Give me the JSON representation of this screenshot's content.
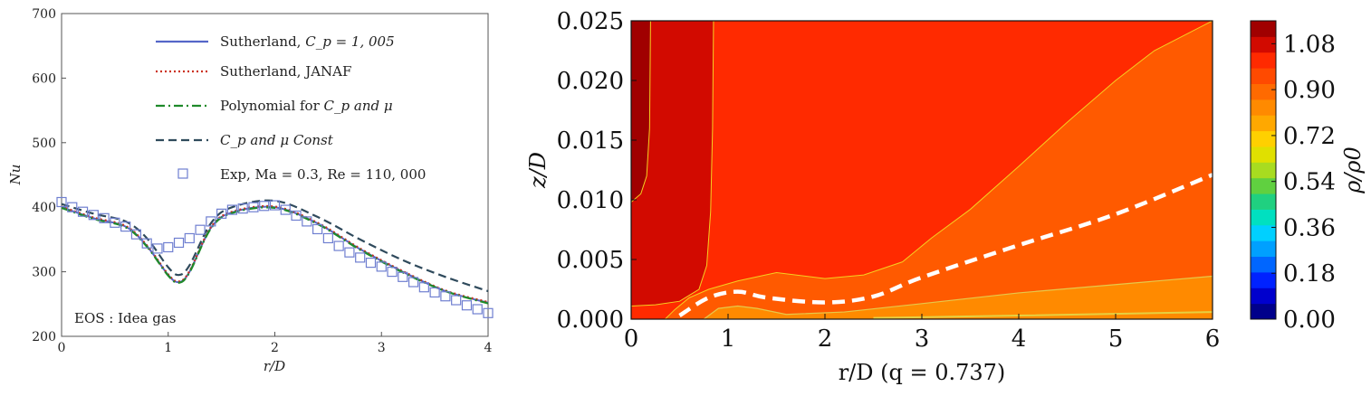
{
  "chart_data": [
    {
      "type": "line",
      "xlabel": "r/D",
      "ylabel": "Nu",
      "xlim": [
        0,
        4
      ],
      "ylim": [
        200,
        700
      ],
      "x_ticks": [
        "0",
        "1",
        "2",
        "3",
        "4"
      ],
      "y_ticks": [
        "200",
        "300",
        "400",
        "500",
        "600",
        "700"
      ],
      "annotation": "EOS : Idea gas",
      "legend_position": "top-right",
      "series": [
        {
          "name": "Sutherland, C_p = 1,005",
          "label_main": "Sutherland, ",
          "label_math": "C_p = 1, 005",
          "style": "solid",
          "color": "#5566c8",
          "x": [
            0,
            0.3,
            0.6,
            0.8,
            1.0,
            1.1,
            1.2,
            1.4,
            1.6,
            2.0,
            2.4,
            2.8,
            3.2,
            3.6,
            4.0
          ],
          "y": [
            400,
            383,
            370,
            340,
            295,
            284,
            300,
            368,
            392,
            400,
            375,
            335,
            300,
            270,
            252
          ]
        },
        {
          "name": "Sutherland, JANAF",
          "label_main": "Sutherland, JANAF",
          "label_math": "",
          "style": "dotted",
          "color": "#cc3322",
          "x": [
            0,
            0.3,
            0.6,
            0.8,
            1.0,
            1.1,
            1.2,
            1.4,
            1.6,
            2.0,
            2.4,
            2.8,
            3.2,
            3.6,
            4.0
          ],
          "y": [
            401,
            384,
            371,
            341,
            296,
            285,
            301,
            369,
            393,
            401,
            376,
            336,
            301,
            271,
            253
          ]
        },
        {
          "name": "Polynomial for C_p and μ",
          "label_main": "Polynomial for ",
          "label_math": "C_p and μ",
          "style": "dashdot",
          "color": "#1f8a2a",
          "x": [
            0,
            0.3,
            0.6,
            0.8,
            1.0,
            1.1,
            1.2,
            1.4,
            1.6,
            2.0,
            2.4,
            2.8,
            3.2,
            3.6,
            4.0
          ],
          "y": [
            399,
            382,
            369,
            339,
            294,
            283,
            299,
            367,
            391,
            399,
            374,
            334,
            299,
            270,
            251
          ]
        },
        {
          "name": "C_p and μ Const",
          "label_main": "",
          "label_math": "C_p and μ Const",
          "style": "dashed",
          "color": "#2f4a5c",
          "x": [
            0,
            0.3,
            0.6,
            0.8,
            1.0,
            1.1,
            1.2,
            1.4,
            1.6,
            2.0,
            2.4,
            2.8,
            3.2,
            3.6,
            4.0
          ],
          "y": [
            405,
            390,
            378,
            352,
            307,
            295,
            310,
            375,
            400,
            410,
            385,
            350,
            318,
            292,
            270
          ]
        },
        {
          "name": "Exp, Ma = 0.3, Re = 110, 000",
          "label_main": "Exp, Ma = 0.3, Re = 110, 000",
          "label_math": "",
          "style": "square-markers",
          "color": "#6f7fd0",
          "x": [
            0,
            0.1,
            0.2,
            0.3,
            0.4,
            0.5,
            0.6,
            0.7,
            0.8,
            0.9,
            1.0,
            1.1,
            1.2,
            1.3,
            1.4,
            1.5,
            1.6,
            1.7,
            1.8,
            1.9,
            2.0,
            2.1,
            2.2,
            2.3,
            2.4,
            2.5,
            2.6,
            2.7,
            2.8,
            2.9,
            3.0,
            3.1,
            3.2,
            3.3,
            3.4,
            3.5,
            3.6,
            3.7,
            3.8,
            3.9,
            4.0
          ],
          "y": [
            408,
            400,
            393,
            388,
            383,
            376,
            370,
            358,
            344,
            336,
            338,
            345,
            352,
            365,
            378,
            390,
            396,
            398,
            400,
            402,
            403,
            396,
            387,
            378,
            366,
            352,
            340,
            330,
            322,
            314,
            308,
            300,
            292,
            284,
            276,
            268,
            262,
            256,
            248,
            242,
            236
          ]
        }
      ]
    },
    {
      "type": "heatmap",
      "xlabel": "r/D (q = 0.737)",
      "ylabel": "z/D",
      "xlim": [
        0,
        6
      ],
      "ylim": [
        0,
        0.025
      ],
      "x_ticks": [
        "0",
        "1",
        "2",
        "3",
        "4",
        "5",
        "6"
      ],
      "y_ticks": [
        "0.000",
        "0.005",
        "0.010",
        "0.015",
        "0.020",
        "0.025"
      ],
      "colorbar_label": "ρ/ρ0",
      "colorbar_ticks": [
        "0.00",
        "0.18",
        "0.36",
        "0.54",
        "0.72",
        "0.90",
        "1.08"
      ],
      "colorbar_range": [
        0,
        1.17
      ],
      "colors": {
        "darkest_red": "#a00000",
        "dark_red": "#d20a00",
        "red": "#ff2a00",
        "orange_red": "#ff5a00",
        "orange": "#ff8a00",
        "contour_line": "#f5d020",
        "dashed_line": "#ffffff"
      },
      "dashed_line": {
        "x": [
          0.5,
          0.8,
          1.1,
          1.4,
          2.0,
          2.5,
          3.0,
          4.0,
          5.0,
          6.0
        ],
        "y": [
          0.0003,
          0.0018,
          0.0023,
          0.0018,
          0.0014,
          0.0019,
          0.0035,
          0.0062,
          0.0088,
          0.0121
        ]
      }
    }
  ]
}
